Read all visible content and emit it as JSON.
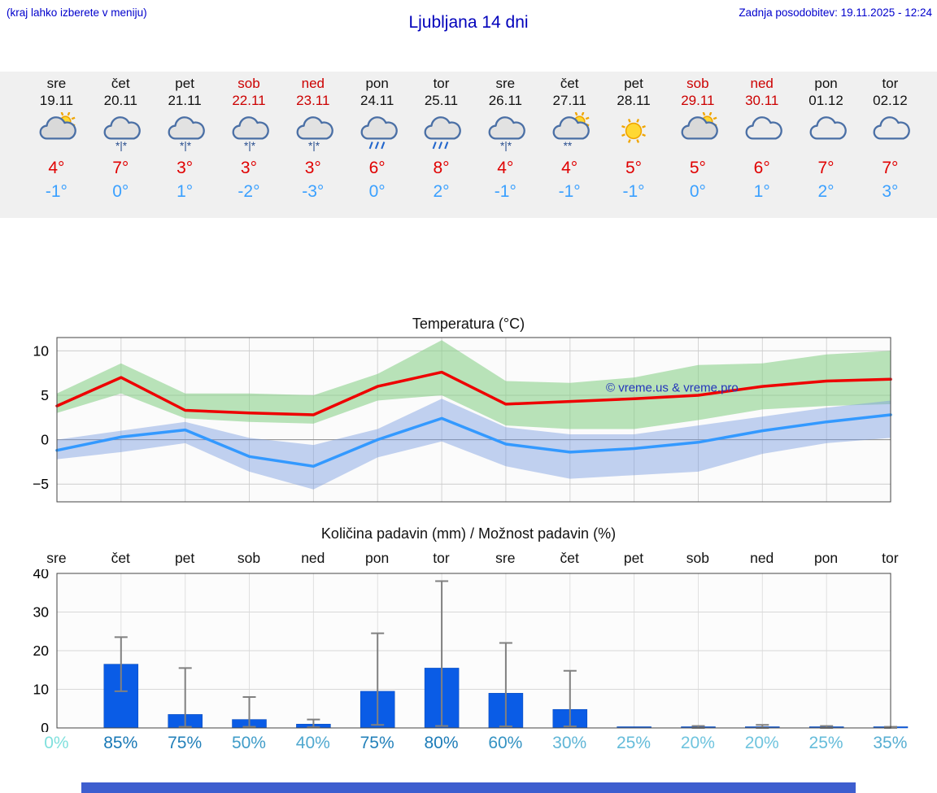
{
  "header": {
    "hint": "(kraj lahko izberete v meniju)",
    "title": "Ljubljana 14 dni",
    "updated": "Zadnja posodobitev: 19.11.2025 - 12:24"
  },
  "colors": {
    "header_blue": "#0000cc",
    "weekend_red": "#cc0000",
    "tmax_red": "#e00000",
    "tmin_blue": "#3aa0ff",
    "strip_bg": "#f0f0f0",
    "bar_blue": "#0a5ce6",
    "footer_blue": "#3d5ecf"
  },
  "forecast": {
    "days": [
      {
        "day": "sre",
        "date": "19.11",
        "weekend": false,
        "icon": "sun-cloud",
        "tmax": "4°",
        "tmin": "-1°"
      },
      {
        "day": "čet",
        "date": "20.11",
        "weekend": false,
        "icon": "sleet",
        "tmax": "7°",
        "tmin": "0°"
      },
      {
        "day": "pet",
        "date": "21.11",
        "weekend": false,
        "icon": "sleet",
        "tmax": "3°",
        "tmin": "1°"
      },
      {
        "day": "sob",
        "date": "22.11",
        "weekend": true,
        "icon": "sleet",
        "tmax": "3°",
        "tmin": "-2°"
      },
      {
        "day": "ned",
        "date": "23.11",
        "weekend": true,
        "icon": "sleet",
        "tmax": "3°",
        "tmin": "-3°"
      },
      {
        "day": "pon",
        "date": "24.11",
        "weekend": false,
        "icon": "rain",
        "tmax": "6°",
        "tmin": "0°"
      },
      {
        "day": "tor",
        "date": "25.11",
        "weekend": false,
        "icon": "rain",
        "tmax": "8°",
        "tmin": "2°"
      },
      {
        "day": "sre",
        "date": "26.11",
        "weekend": false,
        "icon": "sleet",
        "tmax": "4°",
        "tmin": "-1°"
      },
      {
        "day": "čet",
        "date": "27.11",
        "weekend": false,
        "icon": "snow-sun",
        "tmax": "4°",
        "tmin": "-1°"
      },
      {
        "day": "pet",
        "date": "28.11",
        "weekend": false,
        "icon": "sun",
        "tmax": "5°",
        "tmin": "-1°"
      },
      {
        "day": "sob",
        "date": "29.11",
        "weekend": true,
        "icon": "sun-cloud",
        "tmax": "5°",
        "tmin": "0°"
      },
      {
        "day": "ned",
        "date": "30.11",
        "weekend": true,
        "icon": "cloudy",
        "tmax": "6°",
        "tmin": "1°"
      },
      {
        "day": "pon",
        "date": "01.12",
        "weekend": false,
        "icon": "cloudy",
        "tmax": "7°",
        "tmin": "2°"
      },
      {
        "day": "tor",
        "date": "02.12",
        "weekend": false,
        "icon": "cloudy",
        "tmax": "7°",
        "tmin": "3°"
      }
    ]
  },
  "chart_data": [
    {
      "type": "line",
      "title": "Temperatura (°C)",
      "x_labels": [
        "sre",
        "čet",
        "pet",
        "sob",
        "ned",
        "pon",
        "tor",
        "sre",
        "čet",
        "pet",
        "sob",
        "ned",
        "pon",
        "tor"
      ],
      "ylim": [
        -7,
        11.5
      ],
      "yticks": [
        -5,
        0,
        5,
        10
      ],
      "grid": true,
      "watermark": "© vreme.us & vreme.pro",
      "series": [
        {
          "name": "max-temperature",
          "color": "#ee0000",
          "values": [
            3.8,
            7.0,
            3.3,
            3.0,
            2.8,
            6.0,
            7.6,
            4.0,
            4.3,
            4.6,
            5.0,
            6.0,
            6.6,
            6.8
          ]
        },
        {
          "name": "min-temperature",
          "color": "#3399ff",
          "values": [
            -1.2,
            0.3,
            1.1,
            -1.9,
            -3.0,
            0.0,
            2.4,
            -0.5,
            -1.4,
            -1.0,
            -0.3,
            1.0,
            2.0,
            2.8
          ]
        }
      ],
      "bands": [
        {
          "name": "max-range",
          "color": "rgba(130,205,130,0.55)",
          "upper": [
            5.2,
            8.6,
            5.2,
            5.2,
            5.0,
            7.4,
            11.2,
            6.6,
            6.4,
            7.0,
            8.4,
            8.6,
            9.6,
            10.0
          ],
          "lower": [
            3.0,
            5.2,
            2.4,
            2.0,
            1.8,
            4.4,
            5.0,
            1.6,
            1.2,
            1.2,
            2.2,
            3.4,
            3.8,
            4.0
          ]
        },
        {
          "name": "min-range",
          "color": "rgba(120,155,225,0.45)",
          "upper": [
            0.0,
            1.0,
            2.0,
            0.2,
            -0.6,
            1.2,
            4.6,
            1.4,
            0.6,
            0.6,
            1.6,
            2.6,
            3.6,
            4.4
          ],
          "lower": [
            -2.2,
            -1.4,
            -0.4,
            -3.6,
            -5.6,
            -2.0,
            -0.2,
            -3.0,
            -4.4,
            -4.0,
            -3.6,
            -1.6,
            -0.4,
            0.2
          ]
        }
      ]
    },
    {
      "type": "bar",
      "title": "Količina padavin (mm) / Možnost padavin (%)",
      "categories": [
        "sre",
        "čet",
        "pet",
        "sob",
        "ned",
        "pon",
        "tor",
        "sre",
        "čet",
        "pet",
        "sob",
        "ned",
        "pon",
        "tor"
      ],
      "values": [
        0,
        16.5,
        3.5,
        2.2,
        1.0,
        9.5,
        15.5,
        9.0,
        4.8,
        0.1,
        0.1,
        0.2,
        0.1,
        0.1
      ],
      "whisker_high": [
        0,
        23.5,
        15.5,
        8.0,
        2.2,
        24.5,
        38.0,
        22.0,
        14.8,
        0,
        0.5,
        0.8,
        0.5,
        0.3
      ],
      "whisker_low": [
        0,
        9.5,
        0.3,
        0.3,
        0.2,
        0.8,
        0.5,
        0.4,
        0.4,
        0,
        0,
        0,
        0,
        0
      ],
      "ylim": [
        0,
        40
      ],
      "yticks": [
        0,
        10,
        20,
        30,
        40
      ],
      "bar_color": "#0a5ce6",
      "probabilities": [
        {
          "label": "0%",
          "color": "#7fe0dd"
        },
        {
          "label": "85%",
          "color": "#1878b6"
        },
        {
          "label": "75%",
          "color": "#2381ba"
        },
        {
          "label": "50%",
          "color": "#3f9cc8"
        },
        {
          "label": "40%",
          "color": "#4fa8cf"
        },
        {
          "label": "75%",
          "color": "#2381ba"
        },
        {
          "label": "80%",
          "color": "#1d7cb8"
        },
        {
          "label": "60%",
          "color": "#3392c2"
        },
        {
          "label": "30%",
          "color": "#5fb5d6"
        },
        {
          "label": "25%",
          "color": "#65bcda"
        },
        {
          "label": "20%",
          "color": "#6fc4de"
        },
        {
          "label": "20%",
          "color": "#6fc4de"
        },
        {
          "label": "25%",
          "color": "#65bcda"
        },
        {
          "label": "35%",
          "color": "#57aed2"
        }
      ]
    }
  ]
}
